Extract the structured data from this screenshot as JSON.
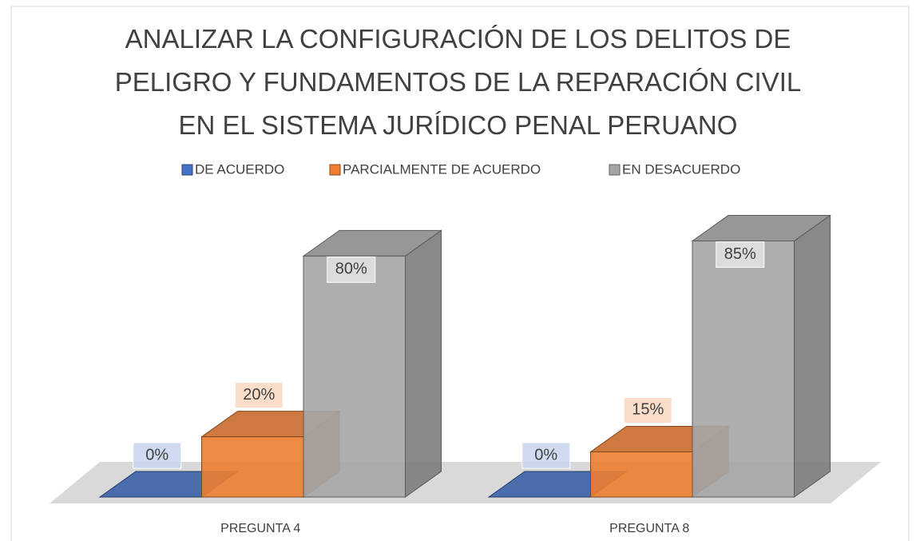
{
  "chart_data": {
    "type": "bar3d",
    "title": "ANALIZAR LA CONFIGURACIÓN DE LOS DELITOS DE PELIGRO Y FUNDAMENTOS DE LA REPARACIÓN CIVIL EN EL SISTEMA JURÍDICO PENAL PERUANO",
    "categories": [
      "PREGUNTA 4",
      "PREGUNTA 8"
    ],
    "series": [
      {
        "name": "DE ACUERDO",
        "color": "#4472c4",
        "values": [
          0,
          0
        ],
        "value_labels": [
          "0%",
          "0%"
        ]
      },
      {
        "name": "PARCIALMENTE DE ACUERDO",
        "color": "#ed7d31",
        "values": [
          20,
          15
        ],
        "value_labels": [
          "20%",
          "15%"
        ]
      },
      {
        "name": "EN DESACUERDO",
        "color": "#a5a5a5",
        "values": [
          80,
          85
        ],
        "value_labels": [
          "80%",
          "85%"
        ]
      }
    ],
    "legend": "top"
  }
}
